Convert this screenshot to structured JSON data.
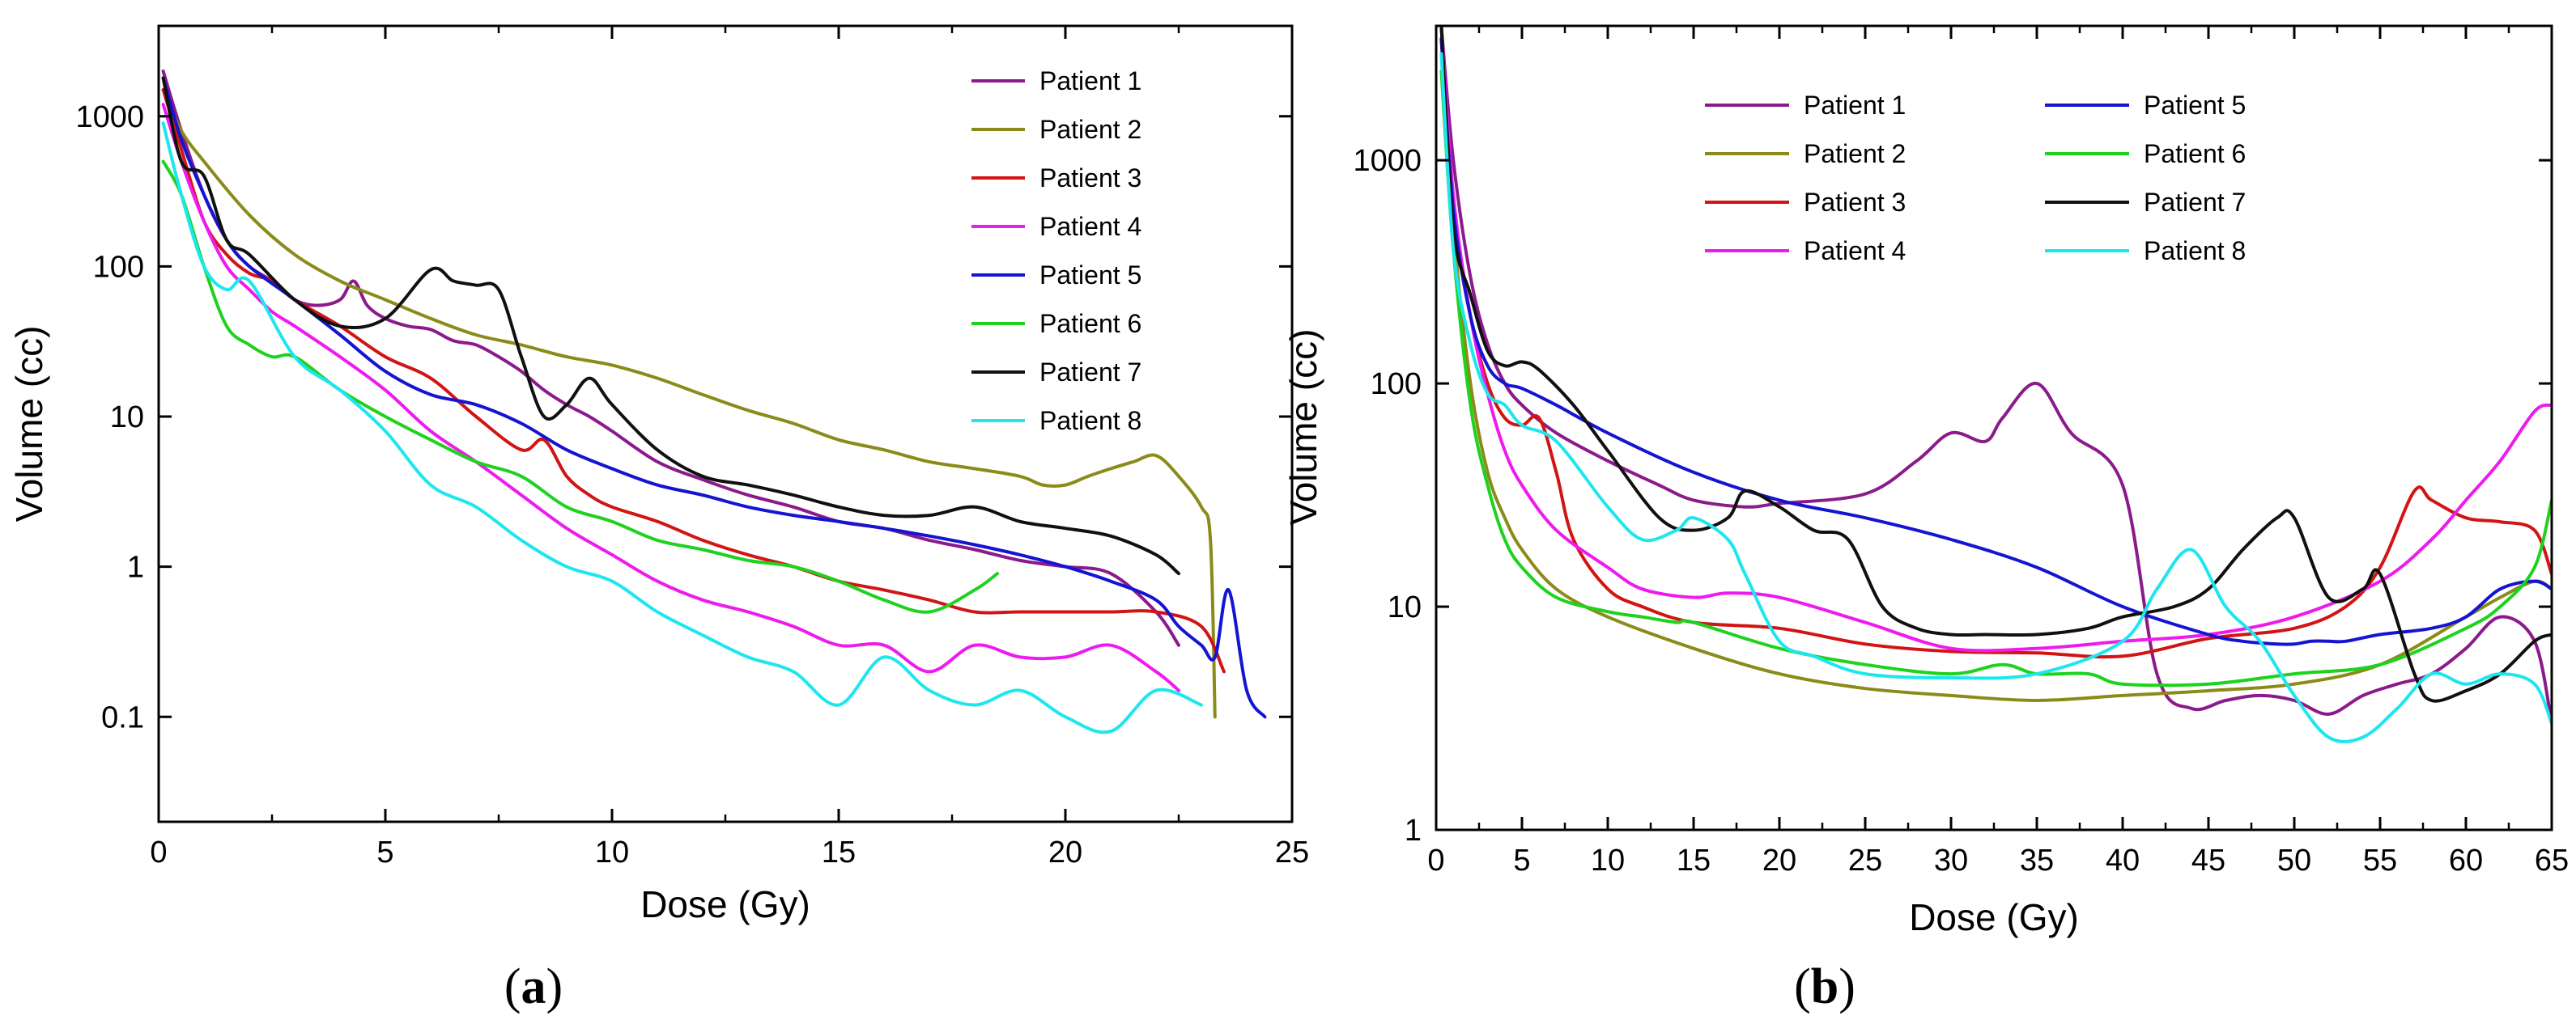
{
  "colors": {
    "Patient 1": "#8b1a8b",
    "Patient 2": "#8b8b1a",
    "Patient 3": "#d21414",
    "Patient 4": "#ee1aee",
    "Patient 5": "#1414d2",
    "Patient 6": "#1ed21e",
    "Patient 7": "#101010",
    "Patient 8": "#1ee6ee"
  },
  "chart_data": [
    {
      "type": "line",
      "panel_label": "a",
      "xlabel": "Dose (Gy)",
      "ylabel": "Volume (cc)",
      "xlim": [
        0,
        25
      ],
      "ylim": [
        0.02,
        4000
      ],
      "yscale": "log",
      "xticks": [
        0,
        5,
        10,
        15,
        20,
        25
      ],
      "xtick_labels": [
        "0",
        "5",
        "10",
        "15",
        "20",
        "25"
      ],
      "yticks": [
        0.1,
        1,
        10,
        100,
        1000
      ],
      "ytick_labels": [
        "0.1",
        "1",
        "10",
        "100",
        "1000"
      ],
      "legend_position": "top-right",
      "series": [
        {
          "name": "Patient 1",
          "x": [
            0.1,
            0.5,
            1,
            1.5,
            2,
            2.5,
            3,
            3.5,
            4,
            4.3,
            4.6,
            5,
            5.5,
            6,
            6.5,
            7,
            7.5,
            8,
            8.5,
            9,
            9.5,
            10,
            11,
            12,
            13,
            14,
            15,
            16,
            17,
            18,
            19,
            20,
            21,
            22,
            22.5
          ],
          "y": [
            2000,
            800,
            300,
            150,
            100,
            80,
            60,
            55,
            60,
            80,
            55,
            45,
            40,
            38,
            32,
            30,
            25,
            20,
            15,
            12,
            10,
            8,
            5,
            3.8,
            3,
            2.5,
            2,
            1.8,
            1.5,
            1.3,
            1.1,
            1,
            0.9,
            0.5,
            0.3
          ]
        },
        {
          "name": "Patient 2",
          "x": [
            0.1,
            0.5,
            1,
            2,
            3,
            4,
            5,
            6,
            7,
            8,
            9,
            10,
            11,
            12,
            13,
            14,
            15,
            16,
            17,
            18,
            19,
            19.5,
            20,
            20.5,
            21,
            21.5,
            22,
            22.5,
            23,
            23.2,
            23.3
          ],
          "y": [
            1500,
            800,
            500,
            220,
            120,
            80,
            60,
            45,
            35,
            30,
            25,
            22,
            18,
            14,
            11,
            9,
            7,
            6,
            5,
            4.5,
            4,
            3.5,
            3.5,
            4,
            4.5,
            5,
            5.5,
            4,
            2.5,
            1.5,
            0.1
          ]
        },
        {
          "name": "Patient 3",
          "x": [
            0.1,
            0.5,
            1,
            1.5,
            2,
            2.5,
            3,
            4,
            5,
            6,
            7,
            8,
            8.5,
            9,
            9.5,
            10,
            11,
            12,
            13,
            14,
            15,
            16,
            17,
            18,
            19,
            20,
            21,
            22,
            23,
            23.5
          ],
          "y": [
            1500,
            600,
            200,
            120,
            90,
            80,
            60,
            40,
            25,
            18,
            10,
            6,
            7,
            4,
            3,
            2.5,
            2,
            1.5,
            1.2,
            1,
            0.8,
            0.7,
            0.6,
            0.5,
            0.5,
            0.5,
            0.5,
            0.5,
            0.4,
            0.2
          ]
        },
        {
          "name": "Patient 4",
          "x": [
            0.1,
            0.5,
            1,
            1.5,
            2,
            2.5,
            3,
            4,
            5,
            6,
            7,
            8,
            9,
            10,
            11,
            12,
            13,
            14,
            15,
            16,
            17,
            18,
            19,
            20,
            21,
            22,
            22.5
          ],
          "y": [
            1200,
            500,
            200,
            100,
            70,
            50,
            40,
            25,
            15,
            8,
            5,
            3,
            1.8,
            1.2,
            0.8,
            0.6,
            0.5,
            0.4,
            0.3,
            0.3,
            0.2,
            0.3,
            0.25,
            0.25,
            0.3,
            0.2,
            0.15
          ]
        },
        {
          "name": "Patient 5",
          "x": [
            0.1,
            0.5,
            1,
            1.5,
            2,
            3,
            4,
            5,
            6,
            7,
            8,
            9,
            10,
            11,
            12,
            13,
            14,
            15,
            16,
            17,
            18,
            19,
            20,
            21,
            22,
            22.5,
            23,
            23.3,
            23.6,
            24,
            24.4
          ],
          "y": [
            1800,
            700,
            300,
            150,
            100,
            60,
            35,
            20,
            14,
            12,
            9,
            6,
            4.5,
            3.5,
            3,
            2.5,
            2.2,
            2,
            1.8,
            1.6,
            1.4,
            1.2,
            1,
            0.8,
            0.6,
            0.4,
            0.3,
            0.25,
            0.7,
            0.15,
            0.1
          ]
        },
        {
          "name": "Patient 6",
          "x": [
            0.1,
            0.5,
            1,
            1.5,
            2,
            2.5,
            3,
            4,
            5,
            6,
            7,
            8,
            9,
            10,
            11,
            12,
            13,
            14,
            15,
            16,
            17,
            18,
            18.5
          ],
          "y": [
            500,
            300,
            100,
            40,
            30,
            25,
            25,
            15,
            10,
            7,
            5,
            4,
            2.5,
            2,
            1.5,
            1.3,
            1.1,
            1,
            0.8,
            0.6,
            0.5,
            0.7,
            0.9
          ]
        },
        {
          "name": "Patient 7",
          "x": [
            0.1,
            0.5,
            1,
            1.5,
            2,
            3,
            4,
            5,
            6,
            6.5,
            7,
            7.5,
            8,
            8.5,
            9,
            9.5,
            10,
            11,
            12,
            13,
            14,
            15,
            16,
            17,
            18,
            19,
            20,
            21,
            22,
            22.5
          ],
          "y": [
            1800,
            500,
            400,
            150,
            120,
            60,
            40,
            45,
            95,
            80,
            75,
            70,
            25,
            10,
            12,
            18,
            12,
            6,
            4,
            3.5,
            3,
            2.5,
            2.2,
            2.2,
            2.5,
            2,
            1.8,
            1.6,
            1.2,
            0.9
          ]
        },
        {
          "name": "Patient 8",
          "x": [
            0.1,
            0.5,
            1,
            1.5,
            2,
            3,
            4,
            5,
            6,
            7,
            8,
            9,
            10,
            11,
            12,
            13,
            14,
            15,
            16,
            17,
            18,
            19,
            20,
            21,
            22,
            23
          ],
          "y": [
            900,
            300,
            100,
            70,
            80,
            25,
            15,
            8,
            3.5,
            2.5,
            1.5,
            1,
            0.8,
            0.5,
            0.35,
            0.25,
            0.2,
            0.12,
            0.25,
            0.15,
            0.12,
            0.15,
            0.1,
            0.08,
            0.15,
            0.12
          ]
        }
      ]
    },
    {
      "type": "line",
      "panel_label": "b",
      "xlabel": "Dose (Gy)",
      "ylabel": "Volume (cc)",
      "xlim": [
        0,
        65
      ],
      "ylim": [
        1,
        4000
      ],
      "yscale": "log",
      "xticks": [
        0,
        5,
        10,
        15,
        20,
        25,
        30,
        35,
        40,
        45,
        50,
        55,
        60,
        65
      ],
      "xtick_labels": [
        "0",
        "5",
        "10",
        "15",
        "20",
        "25",
        "30",
        "35",
        "40",
        "45",
        "50",
        "55",
        "60",
        "65"
      ],
      "yticks": [
        1,
        10,
        100,
        1000
      ],
      "ytick_labels": [
        "1",
        "10",
        "100",
        "1000"
      ],
      "legend_position": "top-center",
      "series": [
        {
          "name": "Patient 1",
          "x": [
            0.3,
            1,
            2,
            3,
            4,
            5,
            7,
            10,
            13,
            15,
            18,
            20,
            25,
            28,
            30,
            32,
            33,
            35,
            37,
            40,
            42,
            44,
            46,
            48,
            50,
            52,
            54,
            56,
            58,
            60,
            62,
            64,
            65
          ],
          "y": [
            4000,
            1000,
            300,
            150,
            100,
            80,
            60,
            45,
            35,
            30,
            28,
            29,
            32,
            45,
            60,
            55,
            70,
            100,
            60,
            35,
            5,
            3.5,
            3.8,
            4,
            3.8,
            3.3,
            4,
            4.5,
            5,
            6.5,
            9,
            7,
            3
          ]
        },
        {
          "name": "Patient 2",
          "x": [
            0.3,
            1,
            2,
            3,
            4,
            5,
            7,
            10,
            15,
            20,
            25,
            30,
            35,
            40,
            45,
            50,
            55,
            60,
            62,
            64,
            65
          ],
          "y": [
            3000,
            500,
            100,
            40,
            25,
            18,
            12,
            9,
            6.5,
            5,
            4.3,
            4,
            3.8,
            4,
            4.2,
            4.5,
            5.5,
            9,
            11,
            13,
            12
          ]
        },
        {
          "name": "Patient 3",
          "x": [
            0.3,
            1,
            2,
            3,
            4,
            5,
            6,
            7,
            8,
            10,
            12,
            15,
            20,
            25,
            30,
            35,
            40,
            45,
            50,
            53,
            55,
            57,
            58,
            60,
            62,
            64,
            65
          ],
          "y": [
            3500,
            600,
            200,
            100,
            70,
            65,
            70,
            40,
            20,
            12,
            10,
            8.5,
            8,
            6.8,
            6.3,
            6.2,
            6,
            7.2,
            8,
            10,
            15,
            33,
            30,
            25,
            24,
            22,
            14
          ]
        },
        {
          "name": "Patient 4",
          "x": [
            0.3,
            1,
            2,
            3,
            4,
            5,
            7,
            10,
            12,
            15,
            17,
            20,
            25,
            30,
            35,
            40,
            45,
            50,
            55,
            58,
            60,
            62,
            64,
            65
          ],
          "y": [
            4000,
            700,
            200,
            90,
            50,
            35,
            22,
            15,
            12,
            11,
            11.5,
            11,
            8.5,
            6.5,
            6.5,
            7,
            7.5,
            9,
            13,
            20,
            30,
            45,
            75,
            80
          ]
        },
        {
          "name": "Patient 5",
          "x": [
            0.3,
            1,
            2,
            3,
            4,
            5,
            7,
            10,
            15,
            20,
            25,
            30,
            35,
            40,
            45,
            47,
            49,
            50,
            51,
            52,
            53,
            55,
            58,
            60,
            62,
            64,
            65
          ],
          "y": [
            3500,
            600,
            200,
            120,
            100,
            95,
            80,
            60,
            40,
            30,
            25,
            20,
            15,
            10,
            7.5,
            7,
            6.8,
            6.8,
            7,
            7,
            7,
            7.5,
            8,
            9,
            12,
            13,
            12
          ]
        },
        {
          "name": "Patient 6",
          "x": [
            0.3,
            1,
            2,
            3,
            4,
            5,
            7,
            10,
            12,
            14,
            15,
            20,
            25,
            30,
            33,
            35,
            38,
            40,
            45,
            50,
            55,
            60,
            62,
            64,
            65
          ],
          "y": [
            2500,
            400,
            80,
            35,
            20,
            15,
            11,
            9.5,
            9,
            8.5,
            8.5,
            6.5,
            5.5,
            5,
            5.5,
            5,
            5,
            4.5,
            4.5,
            5,
            5.5,
            8,
            10,
            15,
            30
          ]
        },
        {
          "name": "Patient 7",
          "x": [
            0.3,
            1,
            2,
            3,
            4,
            5,
            6,
            8,
            10,
            13,
            15,
            17,
            18,
            20,
            22,
            24,
            26,
            28,
            30,
            32,
            35,
            38,
            40,
            43,
            45,
            47,
            49,
            50,
            52,
            54,
            55,
            57,
            58,
            60,
            62,
            64,
            65
          ],
          "y": [
            4000,
            500,
            250,
            140,
            120,
            125,
            115,
            80,
            50,
            25,
            22,
            25,
            33,
            28,
            22,
            20,
            10,
            8,
            7.5,
            7.5,
            7.5,
            8,
            9,
            10,
            12,
            18,
            25,
            25,
            11,
            12,
            14,
            5,
            3.8,
            4.2,
            5,
            7,
            7.5
          ]
        },
        {
          "name": "Patient 8",
          "x": [
            0.3,
            1,
            2,
            3,
            4,
            5,
            7,
            10,
            12,
            14,
            15,
            17,
            18,
            20,
            22,
            25,
            30,
            35,
            40,
            42,
            44,
            46,
            48,
            50,
            52,
            54,
            56,
            58,
            60,
            62,
            64,
            65
          ],
          "y": [
            3000,
            400,
            150,
            90,
            80,
            65,
            55,
            28,
            20,
            22,
            25,
            20,
            14,
            7,
            6,
            5,
            4.8,
            5,
            7,
            12,
            18,
            10,
            7,
            4,
            2.6,
            2.6,
            3.5,
            5,
            4.5,
            5,
            4.5,
            3
          ]
        }
      ]
    }
  ]
}
